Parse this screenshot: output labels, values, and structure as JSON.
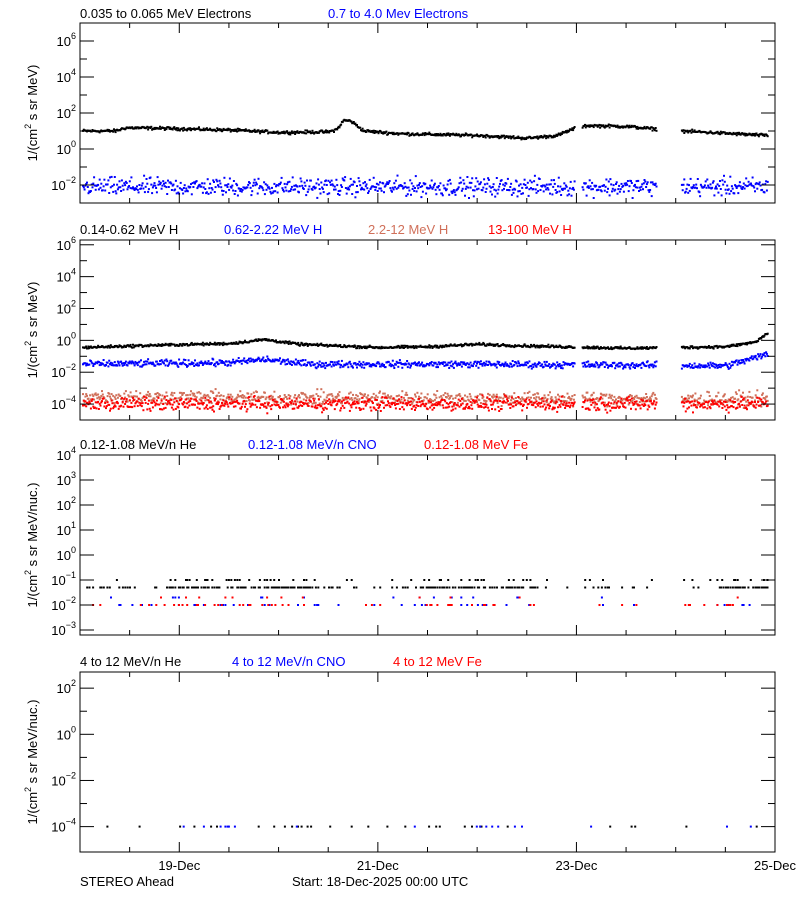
{
  "footer": {
    "left": "STEREO Ahead",
    "start": "Start: 18-Dec-2025 00:00 UTC"
  },
  "x_axis": {
    "start_day": 0,
    "end_day": 7,
    "ticks": [
      {
        "day": 1,
        "label": "19-Dec"
      },
      {
        "day": 3,
        "label": "21-Dec"
      },
      {
        "day": 5,
        "label": "23-Dec"
      },
      {
        "day": 7,
        "label": "25-Dec"
      }
    ]
  },
  "colors": {
    "black": "#000000",
    "blue": "#0000ff",
    "brown": "#d0705a",
    "red": "#ff0000"
  },
  "chart_data": [
    {
      "type": "scatter",
      "ylabel_parts": [
        "1/(cm",
        "2",
        " s sr MeV)"
      ],
      "ylog_range": [
        -3,
        7
      ],
      "major_exponents": [
        6,
        4,
        2,
        0,
        -2
      ],
      "minor_exponents": [
        5,
        3,
        1,
        -1
      ],
      "gaps": [
        [
          4.98,
          5.05
        ],
        [
          5.8,
          6.05
        ]
      ],
      "series": [
        {
          "name": "0.035 to 0.065 MeV Electrons",
          "color": "black",
          "scatter": 0.06,
          "knots": [
            [
              0,
              1.0
            ],
            [
              0.35,
              1.0
            ],
            [
              0.45,
              1.18
            ],
            [
              0.8,
              1.15
            ],
            [
              1.5,
              1.05
            ],
            [
              2.0,
              0.92
            ],
            [
              2.5,
              0.95
            ],
            [
              2.58,
              1.1
            ],
            [
              2.65,
              1.6
            ],
            [
              2.72,
              1.55
            ],
            [
              2.85,
              1.0
            ],
            [
              3.2,
              0.85
            ],
            [
              4.0,
              0.75
            ],
            [
              4.5,
              0.6
            ],
            [
              4.8,
              0.75
            ],
            [
              4.95,
              1.1
            ],
            [
              5.1,
              1.3
            ],
            [
              5.5,
              1.25
            ],
            [
              5.8,
              1.1
            ],
            [
              6.05,
              1.0
            ],
            [
              6.9,
              0.75
            ]
          ]
        },
        {
          "name": "0.7 to 4.0 Mev Electrons",
          "color": "blue",
          "scatter": 0.35,
          "knots": [
            [
              0,
              -2.1
            ],
            [
              6.9,
              -2.1
            ]
          ]
        }
      ]
    },
    {
      "type": "scatter",
      "ylabel_parts": [
        "1/(cm",
        "2",
        " s sr MeV)"
      ],
      "ylog_range": [
        -5,
        6.3
      ],
      "major_exponents": [
        6,
        4,
        2,
        0,
        -2,
        -4
      ],
      "minor_exponents": [
        5,
        3,
        1,
        -1,
        -3
      ],
      "gaps": [
        [
          4.98,
          5.05
        ],
        [
          5.8,
          6.05
        ]
      ],
      "series": [
        {
          "name": "0.14-0.62 MeV H",
          "color": "black",
          "scatter": 0.06,
          "knots": [
            [
              0,
              -0.45
            ],
            [
              0.8,
              -0.3
            ],
            [
              1.5,
              -0.2
            ],
            [
              1.85,
              0.05
            ],
            [
              2.2,
              -0.25
            ],
            [
              3.0,
              -0.45
            ],
            [
              3.5,
              -0.4
            ],
            [
              4.0,
              -0.25
            ],
            [
              4.5,
              -0.35
            ],
            [
              5.5,
              -0.5
            ],
            [
              6.5,
              -0.4
            ],
            [
              6.8,
              -0.1
            ],
            [
              6.9,
              0.4
            ]
          ]
        },
        {
          "name": "0.62-2.22 MeV H",
          "color": "blue",
          "scatter": 0.15,
          "knots": [
            [
              0,
              -1.5
            ],
            [
              1.5,
              -1.4
            ],
            [
              1.85,
              -1.2
            ],
            [
              2.3,
              -1.5
            ],
            [
              4.0,
              -1.5
            ],
            [
              6.5,
              -1.6
            ],
            [
              6.9,
              -0.9
            ]
          ]
        },
        {
          "name": "2.2-12 MeV H",
          "color": "brown",
          "scatter": 0.3,
          "knots": [
            [
              0,
              -3.5
            ],
            [
              1.5,
              -3.6
            ],
            [
              6.9,
              -3.7
            ]
          ]
        },
        {
          "name": "13-100 MeV H",
          "color": "red",
          "scatter": 0.3,
          "knots": [
            [
              0,
              -4.0
            ],
            [
              6.9,
              -4.0
            ]
          ]
        }
      ]
    },
    {
      "type": "scatter",
      "ylabel_parts": [
        "1/(cm",
        "2",
        " s sr MeV/nuc.)"
      ],
      "ylog_range": [
        -3.2,
        4
      ],
      "major_exponents": [
        4,
        3,
        2,
        1,
        0,
        -1,
        -2,
        -3
      ],
      "minor_exponents": [],
      "gaps": [
        [
          4.98,
          5.05
        ],
        [
          5.8,
          6.05
        ]
      ],
      "series": [
        {
          "name": "0.12-1.08 MeV/n He",
          "color": "black",
          "levels": [
            -1.3,
            -1.0
          ],
          "density": 0.55,
          "knots": [
            [
              0,
              -1.3
            ],
            [
              6.9,
              -1.3
            ]
          ]
        },
        {
          "name": "0.12-1.08 MeV/n CNO",
          "color": "blue",
          "levels": [
            -2.0,
            -1.7
          ],
          "density": 0.12,
          "knots": [
            [
              0,
              -2
            ],
            [
              6.9,
              -2
            ]
          ]
        },
        {
          "name": "0.12-1.08 MeV Fe",
          "color": "red",
          "levels": [
            -2.0,
            -1.7
          ],
          "density": 0.15,
          "knots": [
            [
              0,
              -2
            ],
            [
              6.9,
              -2
            ]
          ]
        }
      ]
    },
    {
      "type": "scatter",
      "ylabel_parts": [
        "1/(cm",
        "2",
        " s sr MeV/nuc.)"
      ],
      "ylog_range": [
        -5.1,
        2.7
      ],
      "major_exponents": [
        2,
        0,
        -2,
        -4
      ],
      "minor_exponents": [
        1,
        -1,
        -3
      ],
      "gaps": [
        [
          4.98,
          5.05
        ],
        [
          5.8,
          6.05
        ]
      ],
      "series": [
        {
          "name": "4 to 12 MeV/n He",
          "color": "black",
          "levels": [
            -4.0
          ],
          "density": 0.08,
          "knots": [
            [
              0,
              -4
            ],
            [
              6.9,
              -4
            ]
          ]
        },
        {
          "name": "4 to 12 MeV/n CNO",
          "color": "blue",
          "levels": [
            -4.0
          ],
          "density": 0.03,
          "knots": [
            [
              0,
              -4
            ],
            [
              6.9,
              -4
            ]
          ]
        },
        {
          "name": "4 to 12 MeV Fe",
          "color": "red",
          "levels": [
            -4.0
          ],
          "density": 0.0,
          "knots": [
            [
              0,
              -4
            ],
            [
              6.9,
              -4
            ]
          ]
        }
      ]
    }
  ]
}
